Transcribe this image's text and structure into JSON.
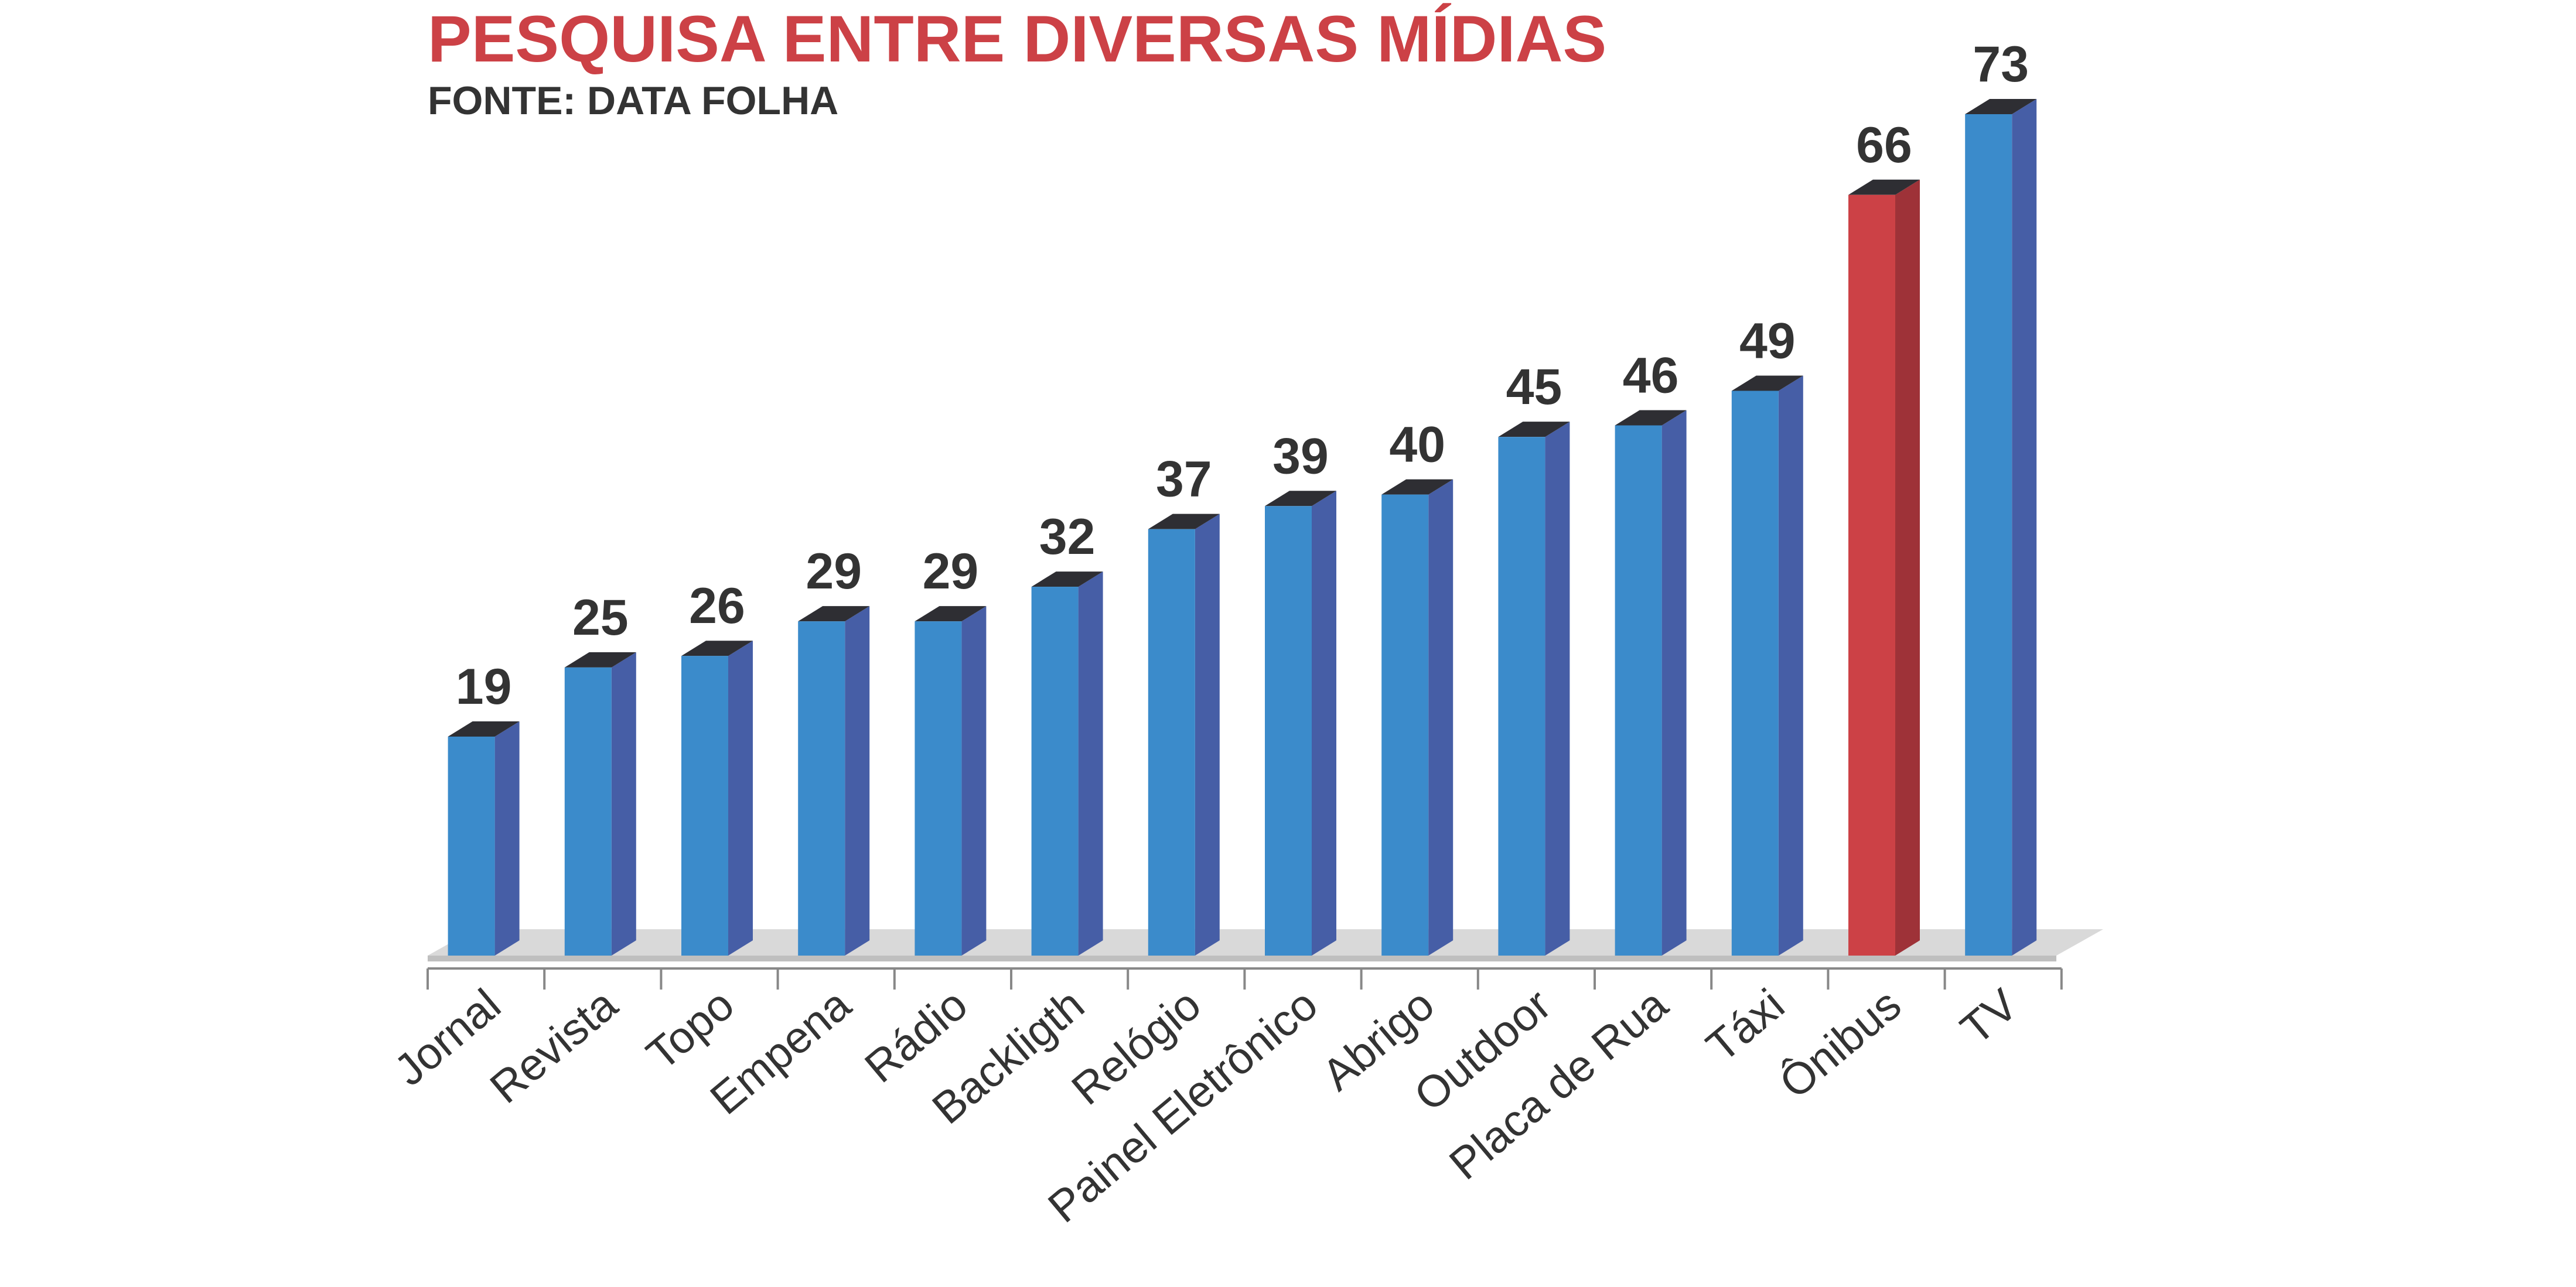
{
  "colors": {
    "title": "#cc4146",
    "text": "#333333",
    "bar_front": "#3b8bcb",
    "bar_side": "#465ea6",
    "bar_top": "#2e2e33",
    "highlight_front": "#cc4146",
    "highlight_side": "#9e3238",
    "floor": "#d9d9d9",
    "axis": "#888888"
  },
  "chart_data": {
    "type": "bar",
    "title": "PESQUISA ENTRE DIVERSAS MÍDIAS",
    "subtitle": "FONTE: DATA FOLHA",
    "categories": [
      "Jornal",
      "Revista",
      "Topo",
      "Empena",
      "Rádio",
      "Backligth",
      "Relógio",
      "Painel Eletrônico",
      "Abrigo",
      "Outdoor",
      "Placa de Rua",
      "Táxi",
      "Ônibus",
      "TV"
    ],
    "values": [
      19,
      25,
      26,
      29,
      29,
      32,
      37,
      39,
      40,
      45,
      46,
      49,
      66,
      73
    ],
    "value_labels": [
      "19",
      "25",
      "26",
      "29",
      "29",
      "32",
      "37",
      "39",
      "40",
      "45",
      "46",
      "49",
      "66",
      "73"
    ],
    "highlight": "Ônibus",
    "ylim": [
      0,
      73
    ],
    "grid": false,
    "legend": "none",
    "style": "3d-columns"
  }
}
